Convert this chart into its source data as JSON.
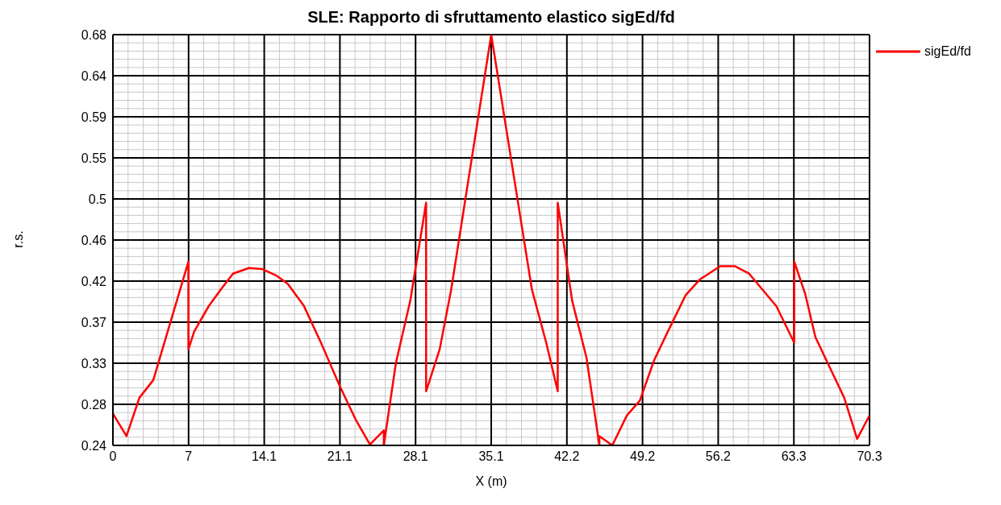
{
  "chart_data": {
    "type": "line",
    "title": "SLE: Rapporto di sfruttamento elastico sigEd/fd",
    "xlabel": "X (m)",
    "ylabel": "r.s.",
    "xlim": [
      0,
      70.3
    ],
    "xticks": [
      0,
      {
        "value": 7.03,
        "label": "7"
      },
      {
        "value": 14.06,
        "label": "14.1"
      },
      {
        "value": 21.09,
        "label": "21.1"
      },
      {
        "value": 28.12,
        "label": "28.1"
      },
      {
        "value": 35.15,
        "label": "35.1"
      },
      {
        "value": 42.18,
        "label": "42.2"
      },
      {
        "value": 49.21,
        "label": "49.2"
      },
      {
        "value": 56.24,
        "label": "56.2"
      },
      {
        "value": 63.27,
        "label": "63.3"
      },
      70.3
    ],
    "ylim": [
      0.24,
      0.68
    ],
    "yticks": [
      0.24,
      {
        "value": 0.284,
        "label": "0.28"
      },
      {
        "value": 0.328,
        "label": "0.33"
      },
      {
        "value": 0.372,
        "label": "0.37"
      },
      {
        "value": 0.416,
        "label": "0.42"
      },
      0.46,
      {
        "value": 0.504,
        "label": "0.5"
      },
      {
        "value": 0.548,
        "label": "0.55"
      },
      {
        "value": 0.592,
        "label": "0.59"
      },
      {
        "value": 0.636,
        "label": "0.64"
      },
      0.68
    ],
    "grid": true,
    "legend": "top right",
    "marker": "none",
    "line_style": "solid",
    "series": [
      {
        "name": "sigEd/fd",
        "color": "#ff0000",
        "x": [
          0,
          1.26,
          2.46,
          3.75,
          7.02,
          7.02,
          7.55,
          8.89,
          10.09,
          11.16,
          12.64,
          13.84,
          15.18,
          16.25,
          17.72,
          19.33,
          21.06,
          22.54,
          23.88,
          25.17,
          25.17,
          26.29,
          27.63,
          29.1,
          29.1,
          30.36,
          31.43,
          35.15,
          38.93,
          40.26,
          41.33,
          41.33,
          42.67,
          44.0,
          45.2,
          45.2,
          46.4,
          47.75,
          48.96,
          50.28,
          51.48,
          53.22,
          54.56,
          56.43,
          57.77,
          59.11,
          61.65,
          63.3,
          63.3,
          64.33,
          65.27,
          67.95,
          69.15,
          70.3
        ],
        "values": [
          0.274,
          0.25,
          0.291,
          0.31,
          0.437,
          0.343,
          0.362,
          0.389,
          0.408,
          0.424,
          0.43,
          0.429,
          0.422,
          0.413,
          0.39,
          0.35,
          0.304,
          0.268,
          0.241,
          0.256,
          0.24,
          0.328,
          0.395,
          0.5,
          0.298,
          0.343,
          0.407,
          0.68,
          0.407,
          0.35,
          0.298,
          0.5,
          0.395,
          0.334,
          0.24,
          0.25,
          0.24,
          0.272,
          0.288,
          0.331,
          0.36,
          0.401,
          0.418,
          0.432,
          0.432,
          0.424,
          0.389,
          0.35,
          0.437,
          0.402,
          0.356,
          0.291,
          0.247,
          0.272
        ]
      }
    ]
  }
}
